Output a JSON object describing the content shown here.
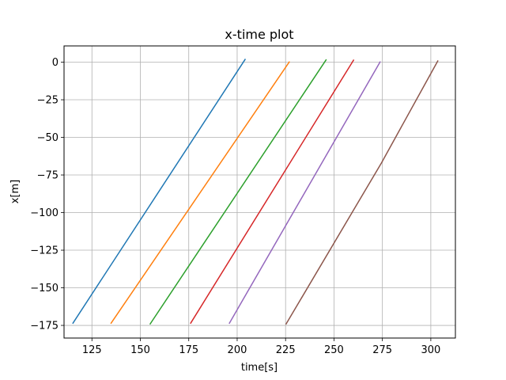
{
  "chart_data": {
    "type": "line",
    "title": "x-time plot",
    "xlabel": "time[s]",
    "ylabel": "x[m]",
    "xlim": [
      110.6,
      312.7
    ],
    "ylim": [
      -183.4,
      10.8
    ],
    "xticks": [
      125,
      150,
      175,
      200,
      225,
      250,
      275,
      300
    ],
    "yticks": [
      0,
      -25,
      -50,
      -75,
      -100,
      -125,
      -150,
      -175
    ],
    "xtick_labels": [
      "125",
      "150",
      "175",
      "200",
      "225",
      "250",
      "275",
      "300"
    ],
    "ytick_labels": [
      "0",
      "−25",
      "−50",
      "−75",
      "−100",
      "−125",
      "−150",
      "−175"
    ],
    "grid": true,
    "series": [
      {
        "color": "#1f77b4",
        "points": [
          [
            115.2,
            -173.5
          ],
          [
            204.1,
            1.8
          ]
        ]
      },
      {
        "color": "#ff7f0e",
        "points": [
          [
            134.9,
            -173.5
          ],
          [
            226.9,
            0.1
          ]
        ]
      },
      {
        "color": "#2ca02c",
        "points": [
          [
            155.1,
            -174.0
          ],
          [
            245.9,
            1.5
          ]
        ]
      },
      {
        "color": "#d62728",
        "points": [
          [
            176.0,
            -173.5
          ],
          [
            260.1,
            1.3
          ]
        ]
      },
      {
        "color": "#9467bd",
        "points": [
          [
            196.0,
            -173.5
          ],
          [
            273.8,
            0.1
          ]
        ]
      },
      {
        "color": "#8c564b",
        "points": [
          [
            225.3,
            -174.0
          ],
          [
            274.5,
            -67.0
          ],
          [
            303.6,
            0.8
          ]
        ]
      }
    ]
  }
}
